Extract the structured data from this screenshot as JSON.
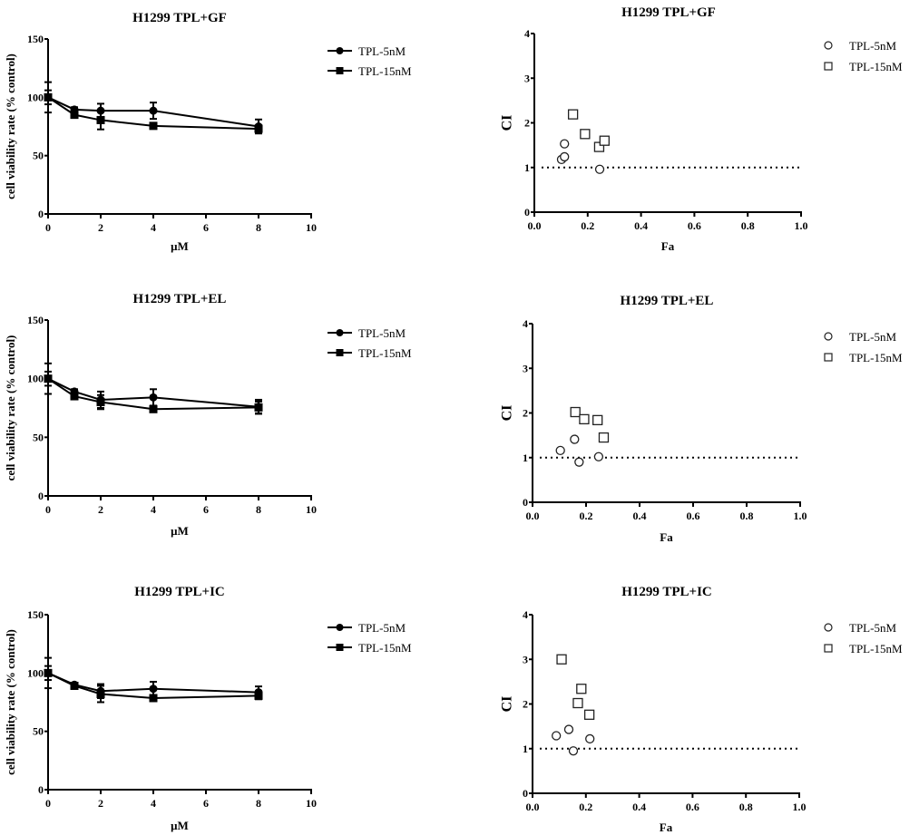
{
  "chart_data": [
    {
      "id": "viability-gf",
      "type": "line",
      "title": "H1299   TPL+GF",
      "xlabel": "μM",
      "ylabel": "cell viability rate (% control)",
      "xlim": [
        0,
        10
      ],
      "ylim": [
        0,
        150
      ],
      "xticks": [
        0,
        2,
        4,
        6,
        8,
        10
      ],
      "yticks": [
        0,
        50,
        100,
        150
      ],
      "x": [
        0,
        1,
        2,
        4,
        8
      ],
      "legend_position": "right",
      "series": [
        {
          "name": "TPL-5nM",
          "marker": "filled-circle",
          "values": [
            100,
            89.5,
            88.5,
            88.5,
            75
          ],
          "errors": [
            13,
            2,
            6,
            7,
            6
          ]
        },
        {
          "name": "TPL-15nM",
          "marker": "filled-square",
          "values": [
            100,
            85,
            80.5,
            75.5,
            73
          ],
          "errors": [
            6,
            2,
            8,
            2,
            3
          ]
        }
      ]
    },
    {
      "id": "ci-gf",
      "type": "scatter",
      "title": "H1299   TPL+GF",
      "xlabel": "Fa",
      "ylabel": "CI",
      "xlim": [
        0,
        1.0
      ],
      "ylim": [
        0,
        4
      ],
      "xticks": [
        "0.0",
        "0.2",
        "0.4",
        "0.6",
        "0.8",
        "1.0"
      ],
      "yticks": [
        0,
        1,
        2,
        3,
        4
      ],
      "reference_line": {
        "y": 1,
        "style": "dotted"
      },
      "legend_position": "right",
      "series": [
        {
          "name": "TPL-5nM",
          "marker": "open-circle",
          "points": [
            [
              0.102,
              1.18
            ],
            [
              0.113,
              1.24
            ],
            [
              0.113,
              1.53
            ],
            [
              0.245,
              0.96
            ]
          ]
        },
        {
          "name": "TPL-15nM",
          "marker": "open-square",
          "points": [
            [
              0.145,
              2.19
            ],
            [
              0.19,
              1.75
            ],
            [
              0.243,
              1.46
            ],
            [
              0.263,
              1.6
            ]
          ]
        }
      ]
    },
    {
      "id": "viability-el",
      "type": "line",
      "title": "H1299  TPL+EL",
      "xlabel": "μM",
      "ylabel": "cell viability rate (% control)",
      "xlim": [
        0,
        10
      ],
      "ylim": [
        0,
        150
      ],
      "xticks": [
        0,
        2,
        4,
        6,
        8,
        10
      ],
      "yticks": [
        0,
        50,
        100,
        150
      ],
      "x": [
        0,
        1,
        2,
        4,
        8
      ],
      "legend_position": "right",
      "series": [
        {
          "name": "TPL-5nM",
          "marker": "filled-circle",
          "values": [
            100,
            89,
            82,
            84,
            76
          ],
          "errors": [
            13,
            2,
            7,
            7,
            6
          ]
        },
        {
          "name": "TPL-15nM",
          "marker": "filled-square",
          "values": [
            100,
            85,
            80,
            74,
            75.5
          ],
          "errors": [
            6,
            2,
            6,
            2,
            5
          ]
        }
      ]
    },
    {
      "id": "ci-el",
      "type": "scatter",
      "title": "H1299   TPL+EL",
      "xlabel": "Fa",
      "ylabel": "CI",
      "xlim": [
        0,
        1.0
      ],
      "ylim": [
        0,
        4
      ],
      "xticks": [
        "0.0",
        "0.2",
        "0.4",
        "0.6",
        "0.8",
        "1.0"
      ],
      "yticks": [
        0,
        1,
        2,
        3,
        4
      ],
      "reference_line": {
        "y": 1,
        "style": "dotted"
      },
      "legend_position": "right",
      "series": [
        {
          "name": "TPL-5nM",
          "marker": "open-circle",
          "points": [
            [
              0.104,
              1.16
            ],
            [
              0.157,
              1.41
            ],
            [
              0.174,
              0.9
            ],
            [
              0.247,
              1.02
            ]
          ]
        },
        {
          "name": "TPL-15nM",
          "marker": "open-square",
          "points": [
            [
              0.16,
              2.02
            ],
            [
              0.193,
              1.86
            ],
            [
              0.243,
              1.84
            ],
            [
              0.266,
              1.45
            ]
          ]
        }
      ]
    },
    {
      "id": "viability-ic",
      "type": "line",
      "title": "H1299  TPL+IC",
      "xlabel": "μM",
      "ylabel": "cell viability rate (% control)",
      "xlim": [
        0,
        10
      ],
      "ylim": [
        0,
        150
      ],
      "xticks": [
        0,
        2,
        4,
        6,
        8,
        10
      ],
      "yticks": [
        0,
        50,
        100,
        150
      ],
      "x": [
        0,
        1,
        2,
        4,
        8
      ],
      "legend_position": "right",
      "series": [
        {
          "name": "TPL-5nM",
          "marker": "filled-circle",
          "values": [
            100,
            90,
            84.5,
            86.5,
            83.5
          ],
          "errors": [
            13,
            1.5,
            6,
            6,
            5
          ]
        },
        {
          "name": "TPL-15nM",
          "marker": "filled-square",
          "values": [
            100,
            89,
            82,
            78.5,
            80.5
          ],
          "errors": [
            6,
            1.5,
            7,
            2,
            3
          ]
        }
      ]
    },
    {
      "id": "ci-ic",
      "type": "scatter",
      "title": "H1299   TPL+IC",
      "xlabel": "Fa",
      "ylabel": "CI",
      "xlim": [
        0,
        1.0
      ],
      "ylim": [
        0,
        4
      ],
      "xticks": [
        "0.0",
        "0.2",
        "0.4",
        "0.6",
        "0.8",
        "1.0"
      ],
      "yticks": [
        0,
        1,
        2,
        3,
        4
      ],
      "reference_line": {
        "y": 1,
        "style": "dotted"
      },
      "legend_position": "right",
      "series": [
        {
          "name": "TPL-5nM",
          "marker": "open-circle",
          "points": [
            [
              0.089,
              1.29
            ],
            [
              0.136,
              1.43
            ],
            [
              0.153,
              0.95
            ],
            [
              0.215,
              1.22
            ]
          ]
        },
        {
          "name": "TPL-15nM",
          "marker": "open-square",
          "points": [
            [
              0.109,
              3.0
            ],
            [
              0.183,
              2.34
            ],
            [
              0.17,
              2.02
            ],
            [
              0.213,
              1.76
            ]
          ]
        }
      ]
    }
  ]
}
